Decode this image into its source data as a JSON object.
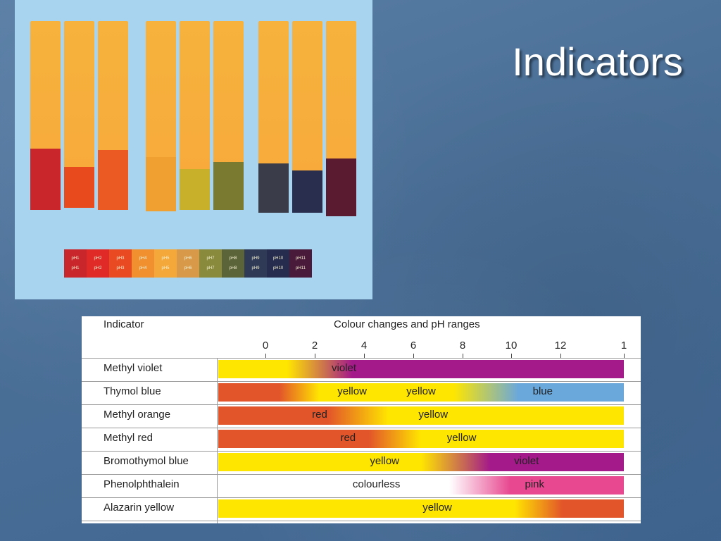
{
  "slide": {
    "title": "Indicators"
  },
  "photo": {
    "strips": [
      {
        "tip_color": "#c8262a"
      },
      {
        "tip_color": "#e84a1e"
      },
      {
        "tip_color": "#ea5a22"
      },
      {
        "tip_color": "#f0a030"
      },
      {
        "tip_color": "#c8b02a"
      },
      {
        "tip_color": "#7a7a30"
      },
      {
        "tip_color": "#3a3c4a"
      },
      {
        "tip_color": "#2a2e4e"
      },
      {
        "tip_color": "#5a1a30"
      }
    ],
    "reference_scale": [
      {
        "label": "pH1",
        "sub": "pH1",
        "color": "#c8262a"
      },
      {
        "label": "pH2",
        "sub": "pH2",
        "color": "#e02a28"
      },
      {
        "label": "pH3",
        "sub": "pH3",
        "color": "#ea4a22"
      },
      {
        "label": "pH4",
        "sub": "pH4",
        "color": "#f0902e"
      },
      {
        "label": "pH5",
        "sub": "pH5",
        "color": "#f4a83a"
      },
      {
        "label": "pH6",
        "sub": "pH6",
        "color": "#d89a48"
      },
      {
        "label": "pH7",
        "sub": "pH7",
        "color": "#8a8a3c"
      },
      {
        "label": "pH8",
        "sub": "pH8",
        "color": "#5a6438"
      },
      {
        "label": "pH9",
        "sub": "pH9",
        "color": "#2e3a56"
      },
      {
        "label": "pH10",
        "sub": "pH10",
        "color": "#262c4e"
      },
      {
        "label": "pH11",
        "sub": "pH11",
        "color": "#4a1a3a"
      }
    ]
  },
  "table": {
    "header_indicator": "Indicator",
    "header_changes": "Colour changes and pH ranges",
    "ticks": [
      "0",
      "2",
      "4",
      "6",
      "8",
      "10",
      "12",
      "1"
    ],
    "rows": [
      {
        "name": "Methyl violet",
        "gradient": "linear-gradient(to right, #ffe600 0%, #ffe600 17%, #a41a8a 33%, #a41a8a 100%)",
        "labels": [
          {
            "text": "violet",
            "pos": 0.31
          }
        ]
      },
      {
        "name": "Thymol blue",
        "gradient": "linear-gradient(to right, #e2542a 0%, #e2542a 15%, #ffe600 25%, #ffe600 58%, #6aa8dc 74%, #6aa8dc 100%)",
        "labels": [
          {
            "text": "yellow",
            "pos": 0.33
          },
          {
            "text": "yellow",
            "pos": 0.5
          },
          {
            "text": "blue",
            "pos": 0.8
          }
        ]
      },
      {
        "name": "Methyl orange",
        "gradient": "linear-gradient(to right, #e2542a 0%, #e2542a 27%, #ffe600 42%, #ffe600 100%)",
        "labels": [
          {
            "text": "red",
            "pos": 0.25
          },
          {
            "text": "yellow",
            "pos": 0.53
          }
        ]
      },
      {
        "name": "Methyl red",
        "gradient": "linear-gradient(to right, #e2542a 0%, #e2542a 37%, #ffe600 50%, #ffe600 100%)",
        "labels": [
          {
            "text": "red",
            "pos": 0.32
          },
          {
            "text": "yellow",
            "pos": 0.6
          }
        ]
      },
      {
        "name": "Bromothymol blue",
        "gradient": "linear-gradient(to right, #ffe600 0%, #ffe600 50%, #a41a8a 67%, #a41a8a 100%)",
        "labels": [
          {
            "text": "yellow",
            "pos": 0.41
          },
          {
            "text": "violet",
            "pos": 0.76
          }
        ]
      },
      {
        "name": "Phenolphthalein",
        "gradient": "linear-gradient(to right, #ffffff 0%, #ffffff 57%, #e84890 72%, #e84890 100%)",
        "labels": [
          {
            "text": "colourless",
            "pos": 0.39
          },
          {
            "text": "pink",
            "pos": 0.78
          }
        ]
      },
      {
        "name": "Alazarin yellow",
        "gradient": "linear-gradient(to right, #ffe600 0%, #ffe600 73%, #e2542a 85%, #e2542a 100%)",
        "labels": [
          {
            "text": "yellow",
            "pos": 0.54
          }
        ]
      }
    ]
  }
}
